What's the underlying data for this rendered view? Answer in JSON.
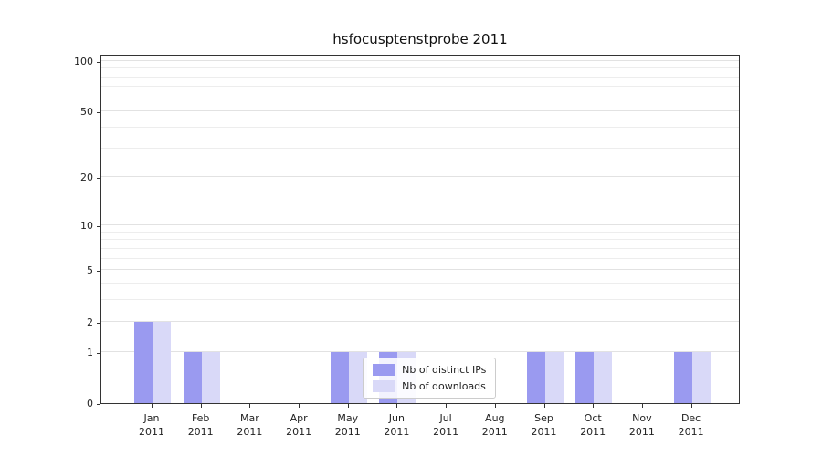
{
  "title": "hsfocusptenstprobe 2011",
  "chart_data": {
    "type": "bar",
    "title": "hsfocusptenstprobe 2011",
    "categories": [
      "Jan\n2011",
      "Feb\n2011",
      "Mar\n2011",
      "Apr\n2011",
      "May\n2011",
      "Jun\n2011",
      "Jul\n2011",
      "Aug\n2011",
      "Sep\n2011",
      "Oct\n2011",
      "Nov\n2011",
      "Dec\n2011"
    ],
    "series": [
      {
        "name": "Nb of distinct IPs",
        "color": "#9a9af0",
        "values": [
          2,
          1,
          0,
          0,
          1,
          1,
          0,
          0,
          1,
          1,
          0,
          1
        ]
      },
      {
        "name": "Nb of downloads",
        "color": "#d9d9f8",
        "values": [
          2,
          1,
          0,
          0,
          1,
          1,
          0,
          0,
          1,
          1,
          0,
          1
        ]
      }
    ],
    "ylabel": "",
    "xlabel": "",
    "ylim": [
      0,
      110
    ],
    "yscale": "log1p",
    "y_ticks": [
      0,
      1,
      2,
      5,
      10,
      20,
      50,
      100
    ],
    "y_minor_gridlines": [
      3,
      4,
      6,
      7,
      8,
      9,
      30,
      40,
      60,
      70,
      80,
      90
    ],
    "grid": "horizontal",
    "legend_position": "bottom-center"
  }
}
